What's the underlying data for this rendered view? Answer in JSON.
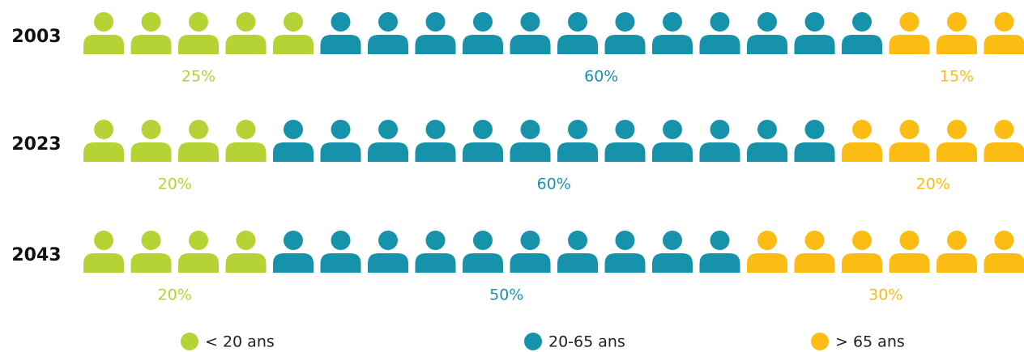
{
  "chart_data": {
    "type": "pictogram",
    "categories": [
      "2003",
      "2023",
      "2043"
    ],
    "series": [
      {
        "name": "< 20 ans",
        "color": "#b5d334",
        "values": [
          25,
          20,
          20
        ],
        "value_labels": [
          "25%",
          "20%",
          "20%"
        ]
      },
      {
        "name": "20-65 ans",
        "color": "#1693aa",
        "values": [
          60,
          60,
          50
        ],
        "value_labels": [
          "60%",
          "60%",
          "50%"
        ]
      },
      {
        "name": "> 65 ans",
        "color": "#fbbc13",
        "values": [
          15,
          20,
          30
        ],
        "value_labels": [
          "15%",
          "20%",
          "30%"
        ]
      }
    ]
  }
}
